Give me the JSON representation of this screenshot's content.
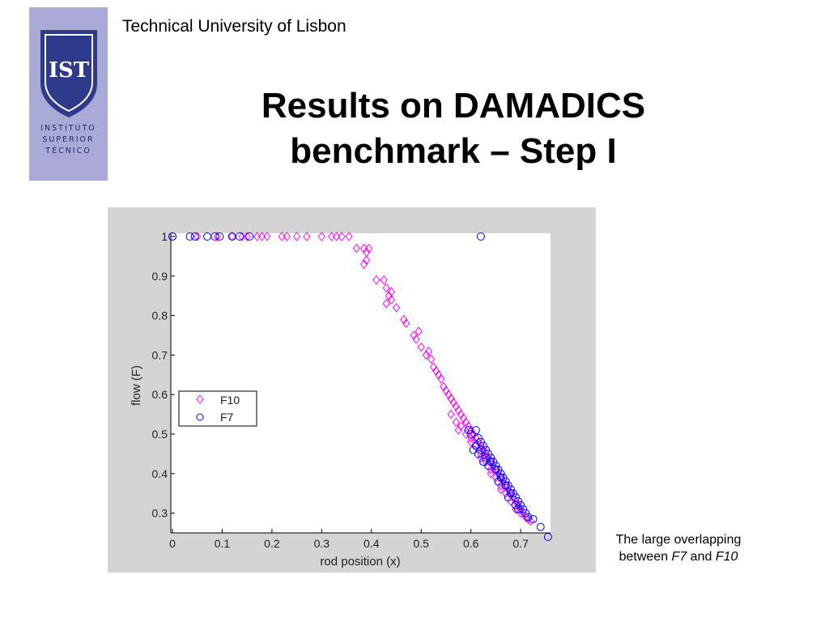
{
  "header": {
    "institution": "Technical University of Lisbon",
    "title_line1": "Results on DAMADICS",
    "title_line2": "benchmark – Step I"
  },
  "logo": {
    "monogram": "IST",
    "lines": [
      "INSTITUTO",
      "SUPERIOR",
      "TÉCNICO"
    ],
    "background": "#a9abd6",
    "shield_color": "#2e3a8c"
  },
  "caption": {
    "text_before": "The large overlapping",
    "text_between": "between",
    "series_a": "F7",
    "and": "and",
    "series_b": "F10"
  },
  "chart_data": {
    "type": "scatter",
    "xlabel": "rod position (x)",
    "ylabel": "flow (F)",
    "xlim": [
      0,
      0.76
    ],
    "ylim": [
      0.25,
      1.0
    ],
    "xticks": [
      "0",
      "0.1",
      "0.2",
      "0.3",
      "0.4",
      "0.5",
      "0.6",
      "0.7"
    ],
    "yticks": [
      "0.3",
      "0.4",
      "0.5",
      "0.6",
      "0.7",
      "0.8",
      "0.9",
      "1"
    ],
    "grid": false,
    "legend": "center-left",
    "series": [
      {
        "name": "F10",
        "marker": "diamond",
        "color": "#ff00ff",
        "points": [
          [
            0.05,
            1.0
          ],
          [
            0.09,
            1.0
          ],
          [
            0.12,
            1.0
          ],
          [
            0.14,
            1.0
          ],
          [
            0.15,
            1.0
          ],
          [
            0.17,
            1.0
          ],
          [
            0.18,
            1.0
          ],
          [
            0.19,
            1.0
          ],
          [
            0.22,
            1.0
          ],
          [
            0.23,
            1.0
          ],
          [
            0.25,
            1.0
          ],
          [
            0.27,
            1.0
          ],
          [
            0.3,
            1.0
          ],
          [
            0.32,
            1.0
          ],
          [
            0.33,
            1.0
          ],
          [
            0.34,
            1.0
          ],
          [
            0.355,
            1.0
          ],
          [
            0.37,
            0.97
          ],
          [
            0.385,
            0.97
          ],
          [
            0.39,
            0.96
          ],
          [
            0.395,
            0.97
          ],
          [
            0.39,
            0.94
          ],
          [
            0.385,
            0.93
          ],
          [
            0.41,
            0.89
          ],
          [
            0.425,
            0.89
          ],
          [
            0.43,
            0.87
          ],
          [
            0.435,
            0.85
          ],
          [
            0.44,
            0.86
          ],
          [
            0.43,
            0.83
          ],
          [
            0.44,
            0.84
          ],
          [
            0.45,
            0.82
          ],
          [
            0.465,
            0.79
          ],
          [
            0.47,
            0.78
          ],
          [
            0.485,
            0.75
          ],
          [
            0.49,
            0.74
          ],
          [
            0.495,
            0.76
          ],
          [
            0.5,
            0.72
          ],
          [
            0.51,
            0.7
          ],
          [
            0.515,
            0.71
          ],
          [
            0.52,
            0.69
          ],
          [
            0.525,
            0.67
          ],
          [
            0.53,
            0.66
          ],
          [
            0.535,
            0.65
          ],
          [
            0.54,
            0.64
          ],
          [
            0.545,
            0.62
          ],
          [
            0.55,
            0.61
          ],
          [
            0.555,
            0.6
          ],
          [
            0.56,
            0.59
          ],
          [
            0.565,
            0.58
          ],
          [
            0.57,
            0.57
          ],
          [
            0.575,
            0.56
          ],
          [
            0.58,
            0.55
          ],
          [
            0.585,
            0.54
          ],
          [
            0.59,
            0.53
          ],
          [
            0.595,
            0.52
          ],
          [
            0.6,
            0.51
          ],
          [
            0.605,
            0.5
          ],
          [
            0.61,
            0.49
          ],
          [
            0.615,
            0.48
          ],
          [
            0.62,
            0.47
          ],
          [
            0.625,
            0.46
          ],
          [
            0.63,
            0.45
          ],
          [
            0.635,
            0.44
          ],
          [
            0.64,
            0.43
          ],
          [
            0.645,
            0.42
          ],
          [
            0.65,
            0.41
          ],
          [
            0.655,
            0.4
          ],
          [
            0.66,
            0.39
          ],
          [
            0.665,
            0.38
          ],
          [
            0.67,
            0.37
          ],
          [
            0.675,
            0.36
          ],
          [
            0.68,
            0.35
          ],
          [
            0.685,
            0.34
          ],
          [
            0.69,
            0.33
          ],
          [
            0.695,
            0.32
          ],
          [
            0.7,
            0.31
          ],
          [
            0.705,
            0.3
          ],
          [
            0.71,
            0.29
          ],
          [
            0.715,
            0.285
          ],
          [
            0.72,
            0.28
          ],
          [
            0.56,
            0.55
          ],
          [
            0.57,
            0.53
          ],
          [
            0.58,
            0.52
          ],
          [
            0.6,
            0.49
          ],
          [
            0.62,
            0.45
          ],
          [
            0.64,
            0.41
          ],
          [
            0.66,
            0.37
          ],
          [
            0.68,
            0.33
          ],
          [
            0.7,
            0.3
          ],
          [
            0.575,
            0.51
          ],
          [
            0.59,
            0.5
          ],
          [
            0.61,
            0.47
          ],
          [
            0.63,
            0.43
          ],
          [
            0.65,
            0.39
          ],
          [
            0.67,
            0.35
          ],
          [
            0.69,
            0.31
          ],
          [
            0.6,
            0.48
          ],
          [
            0.62,
            0.44
          ],
          [
            0.64,
            0.4
          ],
          [
            0.66,
            0.36
          ]
        ]
      },
      {
        "name": "F7",
        "marker": "circle",
        "color": "#0000ff",
        "points": [
          [
            0.0,
            1.0
          ],
          [
            0.0,
            1.0
          ],
          [
            0.035,
            1.0
          ],
          [
            0.045,
            1.0
          ],
          [
            0.07,
            1.0
          ],
          [
            0.085,
            1.0
          ],
          [
            0.095,
            1.0
          ],
          [
            0.12,
            1.0
          ],
          [
            0.135,
            1.0
          ],
          [
            0.155,
            1.0
          ],
          [
            0.62,
            1.0
          ],
          [
            0.595,
            0.51
          ],
          [
            0.6,
            0.5
          ],
          [
            0.61,
            0.51
          ],
          [
            0.615,
            0.49
          ],
          [
            0.62,
            0.48
          ],
          [
            0.625,
            0.47
          ],
          [
            0.63,
            0.46
          ],
          [
            0.635,
            0.45
          ],
          [
            0.64,
            0.44
          ],
          [
            0.645,
            0.43
          ],
          [
            0.65,
            0.42
          ],
          [
            0.655,
            0.41
          ],
          [
            0.66,
            0.4
          ],
          [
            0.665,
            0.39
          ],
          [
            0.67,
            0.38
          ],
          [
            0.675,
            0.37
          ],
          [
            0.68,
            0.36
          ],
          [
            0.685,
            0.35
          ],
          [
            0.69,
            0.34
          ],
          [
            0.695,
            0.33
          ],
          [
            0.7,
            0.32
          ],
          [
            0.705,
            0.31
          ],
          [
            0.71,
            0.3
          ],
          [
            0.715,
            0.29
          ],
          [
            0.725,
            0.285
          ],
          [
            0.74,
            0.265
          ],
          [
            0.755,
            0.24
          ],
          [
            0.61,
            0.47
          ],
          [
            0.62,
            0.46
          ],
          [
            0.63,
            0.44
          ],
          [
            0.64,
            0.43
          ],
          [
            0.65,
            0.41
          ],
          [
            0.66,
            0.39
          ],
          [
            0.67,
            0.37
          ],
          [
            0.68,
            0.35
          ],
          [
            0.69,
            0.32
          ],
          [
            0.605,
            0.46
          ],
          [
            0.615,
            0.45
          ],
          [
            0.625,
            0.43
          ],
          [
            0.635,
            0.42
          ],
          [
            0.655,
            0.38
          ],
          [
            0.675,
            0.34
          ],
          [
            0.695,
            0.31
          ]
        ]
      }
    ]
  }
}
